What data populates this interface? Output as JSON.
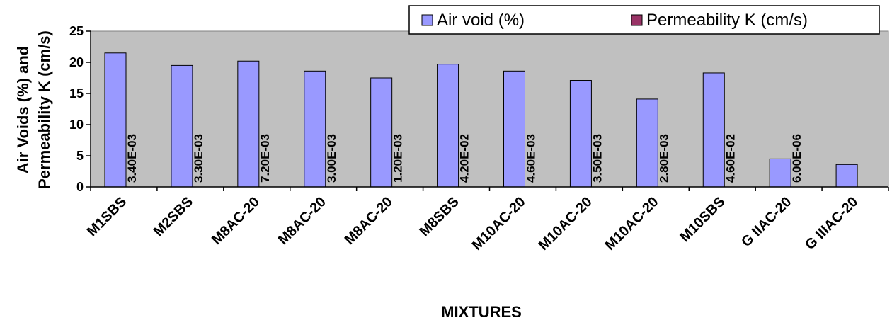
{
  "chart_data": {
    "type": "bar",
    "title": "",
    "xlabel": "MIXTURES",
    "ylabel_lines": [
      "Air Voids (%) and",
      "Permeability K (cm/s)"
    ],
    "ylim": [
      0,
      25
    ],
    "yticks": [
      0,
      5,
      10,
      15,
      20,
      25
    ],
    "grid": false,
    "legend_position": "top-right",
    "categories": [
      "M1SBS",
      "M2SBS",
      "M8AC-20",
      "M8AC-20",
      "M8AC-20",
      "M8SBS",
      "M10AC-20",
      "M10AC-20",
      "M10AC-20",
      "M10SBS",
      "G IIAC-20",
      "G IIIAC-20"
    ],
    "series": [
      {
        "name": "Air void (%)",
        "color": "#9999ff",
        "values": [
          21.5,
          19.5,
          20.2,
          18.6,
          17.5,
          19.7,
          18.6,
          17.1,
          14.1,
          18.3,
          4.5,
          3.6
        ]
      },
      {
        "name": "Permeability K (cm/s)",
        "color": "#993366",
        "values": [
          0.0034,
          0.0033,
          0.0072,
          0.003,
          0.0012,
          0.042,
          0.0046,
          0.0035,
          0.0028,
          0.046,
          6e-06,
          null
        ],
        "labels": [
          "3.40E-03",
          "3.30E-03",
          "7.20E-03",
          "3.00E-03",
          "1.20E-03",
          "4.20E-02",
          "4.60E-03",
          "3.50E-03",
          "2.80E-03",
          "4.60E-02",
          "6.00E-06",
          ""
        ]
      }
    ],
    "plot_background": "#c0c0c0"
  }
}
